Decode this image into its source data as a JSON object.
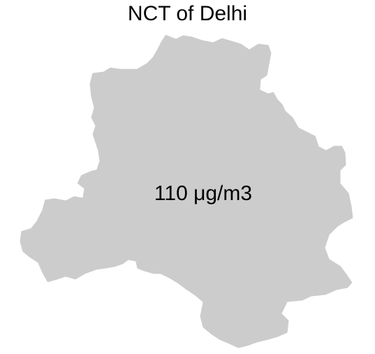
{
  "map": {
    "title": "NCT of Delhi",
    "region_name": "NCT of Delhi",
    "value_label": "110 μg/m3",
    "fill_color": "#cccccc",
    "stroke_color": "#ffffff"
  }
}
